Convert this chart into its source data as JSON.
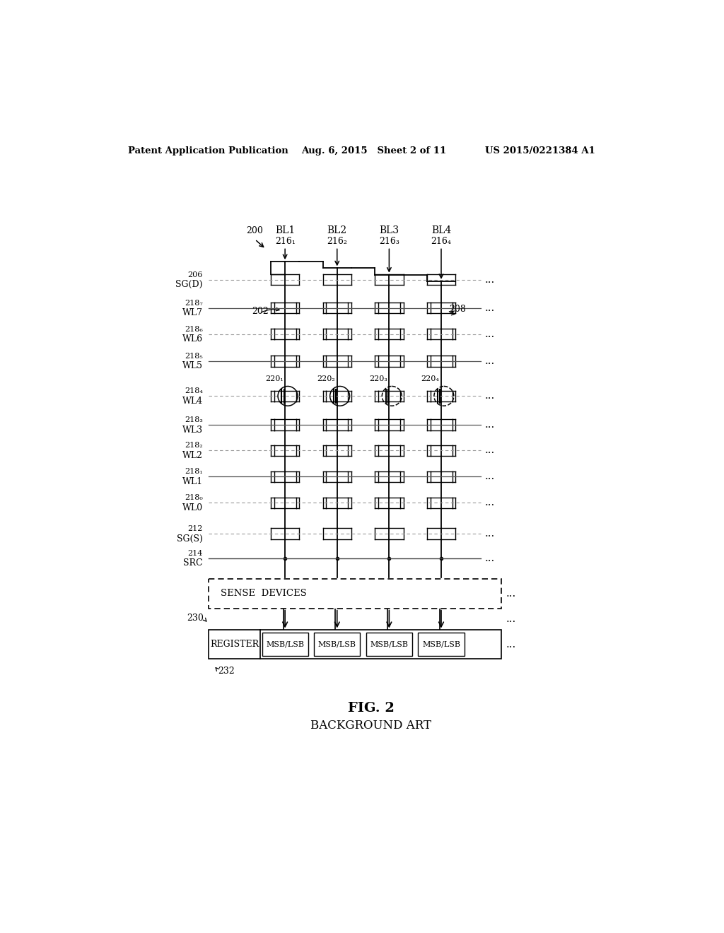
{
  "header_left": "Patent Application Publication",
  "header_mid": "Aug. 6, 2015   Sheet 2 of 11",
  "header_right": "US 2015/0221384 A1",
  "fig_label": "FIG. 2",
  "fig_sublabel": "BACKGROUND ART",
  "bl_labels": [
    "BL1",
    "BL2",
    "BL3",
    "BL4"
  ],
  "bl_sub": [
    "216₁",
    "216₂",
    "216₃",
    "216₄"
  ],
  "row_label_refs": [
    "206",
    "218₇",
    "218₆",
    "218₅",
    "218₄",
    "218₃",
    "218₂",
    "218₁",
    "218₀",
    "212",
    "214"
  ],
  "row_label_names": [
    "SG(D)",
    "WL7",
    "WL6",
    "WL5",
    "WL4",
    "WL3",
    "WL2",
    "WL1",
    "WL0",
    "SG(S)",
    "SRC"
  ],
  "ref_200": "200",
  "ref_202": "202",
  "ref_208": "208",
  "ref_220": [
    "220₁",
    "220₂",
    "220₃",
    "220₄"
  ],
  "ref_230": "230",
  "ref_232": "232",
  "sense_label": "SENSE  DEVICES",
  "register_label": "REGISTER",
  "msblsb_label": "MSB/LSB",
  "bg_color": "#ffffff",
  "line_color": "#000000",
  "gray_color": "#888888"
}
